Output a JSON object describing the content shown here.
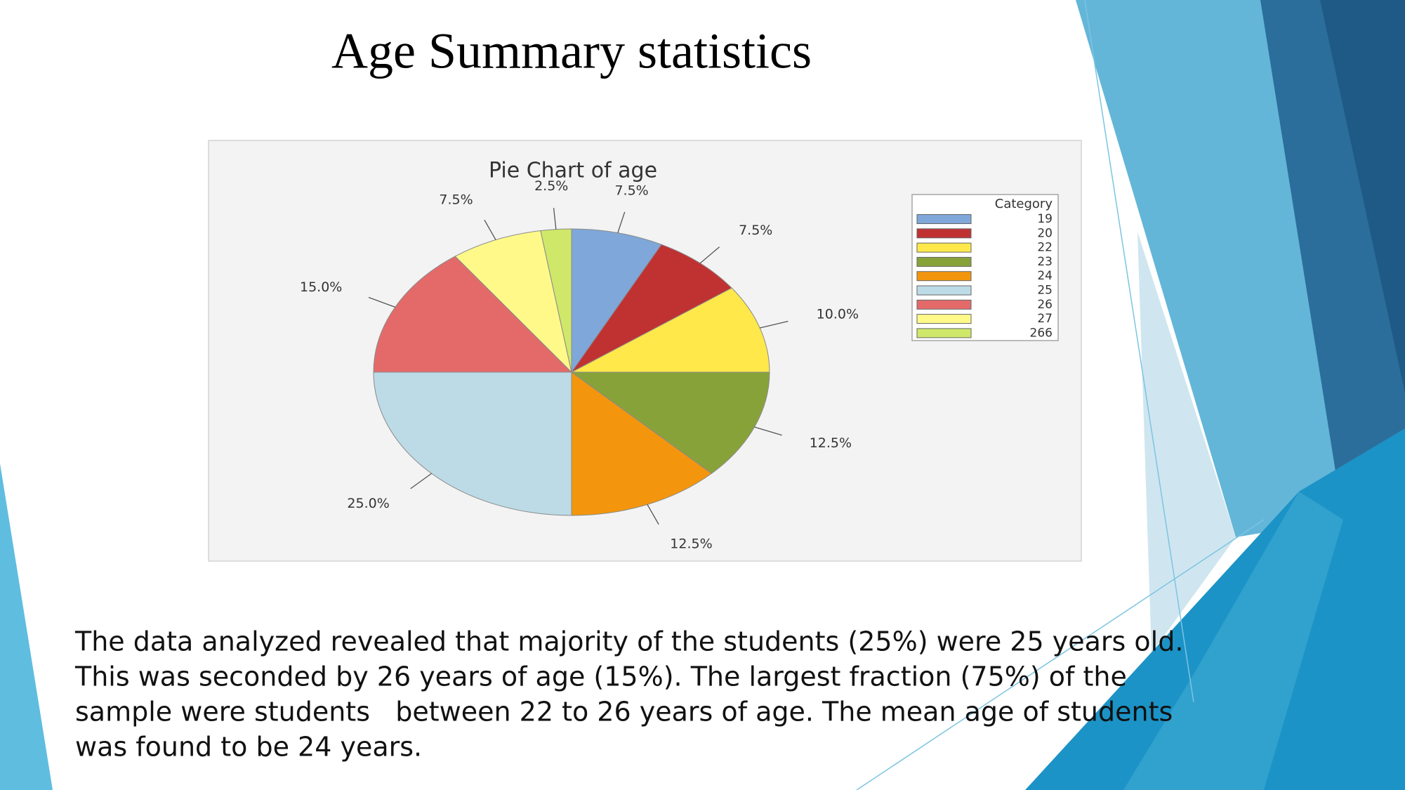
{
  "slide": {
    "title": "Age Summary statistics",
    "body": [
      "The data analyzed revealed that majority of the students (25%) were 25 years old.",
      "This was seconded by 26 years of age (15%). The largest fraction (75%) of the",
      "sample were students   between 22 to 26 years of age. The mean age of students",
      "was found to be 24 years."
    ]
  },
  "chart_data": {
    "type": "pie",
    "title": "Pie Chart of age",
    "legend_title": "Category",
    "legend": "right",
    "categories": [
      "19",
      "20",
      "22",
      "23",
      "24",
      "25",
      "26",
      "27",
      "266"
    ],
    "values": [
      7.5,
      7.5,
      10,
      12.5,
      12.5,
      25,
      15,
      7.5,
      2.5
    ],
    "value_labels": [
      "7.5%",
      "7.5%",
      "10.0%",
      "12.5%",
      "12.5%",
      "25.0%",
      "15.0%",
      "7.5%",
      "2.5%"
    ],
    "colors": [
      "#7fa7d9",
      "#c03232",
      "#ffe84a",
      "#88a23a",
      "#f3960d",
      "#bcdbe6",
      "#e46a6a",
      "#fff98a",
      "#cfe86a"
    ]
  }
}
